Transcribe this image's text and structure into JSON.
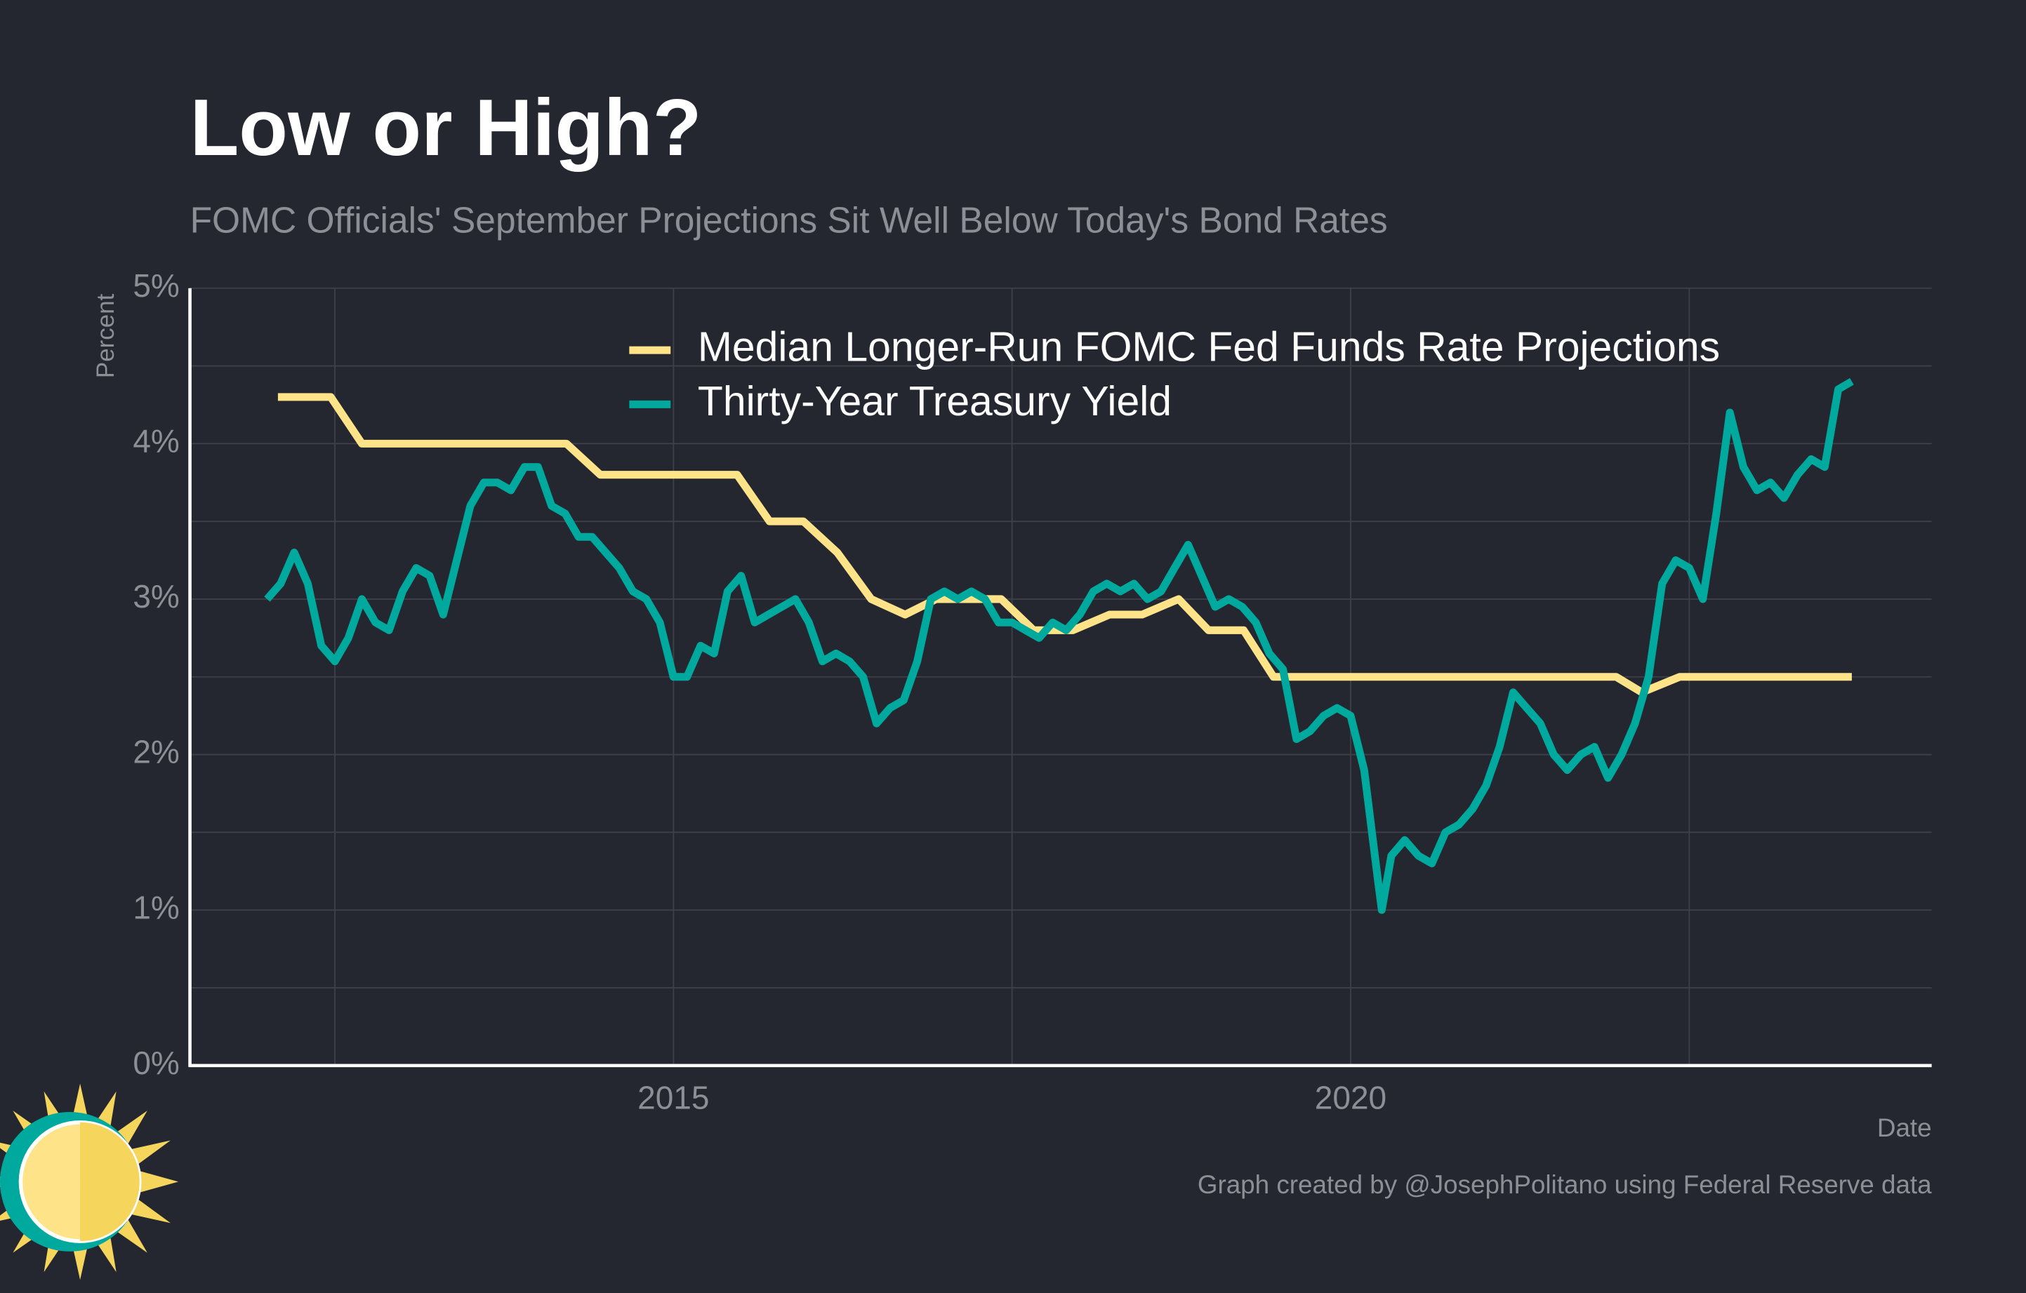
{
  "chart_data": {
    "type": "line",
    "title": "Low or High?",
    "subtitle": "FOMC Officials' September Projections Sit Well Below Today's Bond Rates",
    "y_label": "Percent",
    "x_label": "Date",
    "caption": "Graph created by @JosephPolitano using Federal Reserve data",
    "xlim": [
      2011.43,
      2024.29
    ],
    "xticks": [
      2015,
      2020
    ],
    "xminorticks": [
      2012.5,
      2017.5,
      2022.5
    ],
    "ylim": [
      0,
      5
    ],
    "yticks": [
      {
        "value": 0,
        "label": "0%"
      },
      {
        "value": 1,
        "label": "1%"
      },
      {
        "value": 2,
        "label": "2%"
      },
      {
        "value": 3,
        "label": "3%"
      },
      {
        "value": 4,
        "label": "4%"
      },
      {
        "value": 5,
        "label": "5%"
      }
    ],
    "yminorticks": [
      0.5,
      1.5,
      2.5,
      3.5,
      4.5
    ],
    "grid": true,
    "legend": "top-right",
    "series": [
      {
        "name": "Median Longer-Run FOMC Fed Funds Rate Projections",
        "color": "#fee388",
        "x": [
          2012.08,
          2012.47,
          2012.7,
          2014.21,
          2014.46,
          2015.47,
          2015.71,
          2015.96,
          2016.21,
          2016.46,
          2016.71,
          2016.94,
          2017.42,
          2017.66,
          2017.95,
          2018.22,
          2018.46,
          2018.73,
          2018.95,
          2019.21,
          2019.43,
          2021.96,
          2022.15,
          2022.43,
          2023.7
        ],
        "values": [
          4.3,
          4.3,
          4.0,
          4.0,
          3.8,
          3.8,
          3.5,
          3.5,
          3.3,
          3.0,
          2.9,
          3.0,
          3.0,
          2.8,
          2.8,
          2.9,
          2.9,
          3.0,
          2.8,
          2.8,
          2.5,
          2.5,
          2.4,
          2.5,
          2.5
        ]
      },
      {
        "name": "Thirty-Year Treasury Yield",
        "color": "#00a99d",
        "x": [
          2012.0,
          2012.1,
          2012.2,
          2012.3,
          2012.4,
          2012.5,
          2012.6,
          2012.7,
          2012.8,
          2012.9,
          2013.0,
          2013.1,
          2013.2,
          2013.3,
          2013.4,
          2013.5,
          2013.6,
          2013.7,
          2013.8,
          2013.9,
          2014.0,
          2014.1,
          2014.2,
          2014.3,
          2014.4,
          2014.5,
          2014.6,
          2014.7,
          2014.8,
          2014.9,
          2015.0,
          2015.1,
          2015.2,
          2015.3,
          2015.4,
          2015.5,
          2015.6,
          2015.7,
          2015.8,
          2015.9,
          2016.0,
          2016.1,
          2016.2,
          2016.3,
          2016.4,
          2016.5,
          2016.6,
          2016.7,
          2016.8,
          2016.9,
          2017.0,
          2017.1,
          2017.2,
          2017.3,
          2017.4,
          2017.5,
          2017.6,
          2017.7,
          2017.8,
          2017.9,
          2018.0,
          2018.1,
          2018.2,
          2018.3,
          2018.4,
          2018.5,
          2018.6,
          2018.7,
          2018.8,
          2018.9,
          2019.0,
          2019.1,
          2019.2,
          2019.3,
          2019.4,
          2019.5,
          2019.6,
          2019.7,
          2019.8,
          2019.9,
          2020.0,
          2020.1,
          2020.2,
          2020.23,
          2020.3,
          2020.4,
          2020.5,
          2020.6,
          2020.7,
          2020.8,
          2020.9,
          2021.0,
          2021.1,
          2021.2,
          2021.3,
          2021.4,
          2021.5,
          2021.6,
          2021.7,
          2021.8,
          2021.9,
          2022.0,
          2022.1,
          2022.2,
          2022.3,
          2022.4,
          2022.5,
          2022.6,
          2022.7,
          2022.8,
          2022.9,
          2023.0,
          2023.1,
          2023.2,
          2023.3,
          2023.4,
          2023.5,
          2023.6,
          2023.7
        ],
        "values": [
          3.0,
          3.1,
          3.3,
          3.1,
          2.7,
          2.6,
          2.75,
          3.0,
          2.85,
          2.8,
          3.05,
          3.2,
          3.15,
          2.9,
          3.25,
          3.6,
          3.75,
          3.75,
          3.7,
          3.85,
          3.85,
          3.6,
          3.55,
          3.4,
          3.4,
          3.3,
          3.2,
          3.05,
          3.0,
          2.85,
          2.5,
          2.5,
          2.7,
          2.65,
          3.05,
          3.15,
          2.85,
          2.9,
          2.95,
          3.0,
          2.85,
          2.6,
          2.65,
          2.6,
          2.5,
          2.2,
          2.3,
          2.35,
          2.6,
          3.0,
          3.05,
          3.0,
          3.05,
          3.0,
          2.85,
          2.85,
          2.8,
          2.75,
          2.85,
          2.8,
          2.9,
          3.05,
          3.1,
          3.05,
          3.1,
          3.0,
          3.05,
          3.2,
          3.35,
          3.15,
          2.95,
          3.0,
          2.95,
          2.85,
          2.65,
          2.55,
          2.1,
          2.15,
          2.25,
          2.3,
          2.25,
          1.9,
          1.2,
          1.0,
          1.35,
          1.45,
          1.35,
          1.3,
          1.5,
          1.55,
          1.65,
          1.8,
          2.05,
          2.4,
          2.3,
          2.2,
          2.0,
          1.9,
          2.0,
          2.05,
          1.85,
          2.0,
          2.2,
          2.5,
          3.1,
          3.25,
          3.2,
          3.0,
          3.55,
          4.2,
          3.85,
          3.7,
          3.75,
          3.65,
          3.8,
          3.9,
          3.85,
          4.35,
          4.4
        ]
      }
    ]
  }
}
